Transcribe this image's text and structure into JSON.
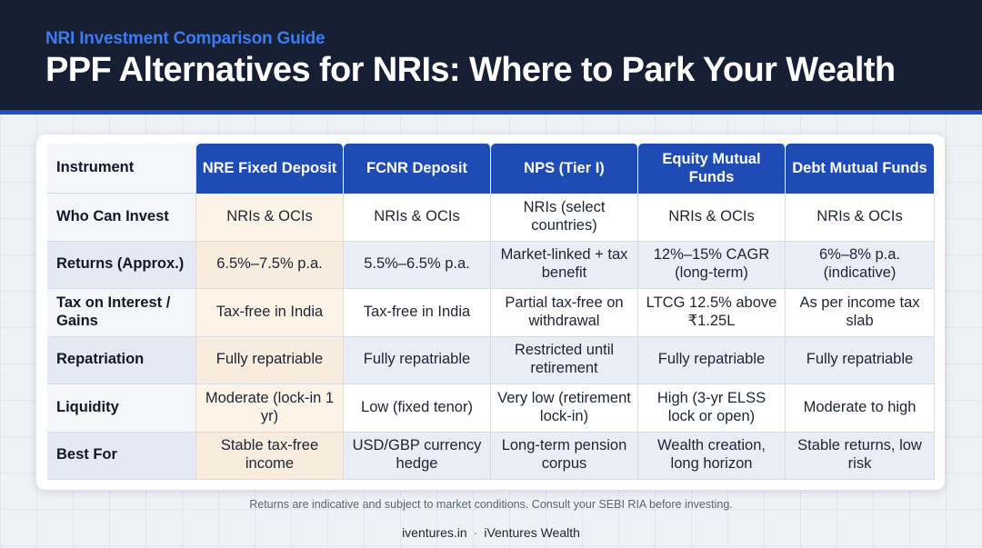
{
  "header": {
    "eyebrow": "NRI Investment Comparison Guide",
    "title": "PPF Alternatives for NRIs: Where to Park Your Wealth"
  },
  "table": {
    "corner": "Instrument",
    "columns": [
      "NRE Fixed Deposit",
      "FCNR Deposit",
      "NPS (Tier I)",
      "Equity Mutual Funds",
      "Debt Mutual Funds"
    ],
    "rows": [
      {
        "label": "Who Can Invest",
        "cells": [
          "NRIs & OCIs",
          "NRIs & OCIs",
          "NRIs (select countries)",
          "NRIs & OCIs",
          "NRIs & OCIs"
        ]
      },
      {
        "label": "Returns (Approx.)",
        "cells": [
          "6.5%–7.5% p.a.",
          "5.5%–6.5% p.a.",
          "Market-linked + tax benefit",
          "12%–15% CAGR (long-term)",
          "6%–8% p.a. (indicative)"
        ]
      },
      {
        "label": "Tax on Interest / Gains",
        "cells": [
          "Tax-free in India",
          "Tax-free in India",
          "Partial tax-free on withdrawal",
          "LTCG 12.5% above ₹1.25L",
          "As per income tax slab"
        ]
      },
      {
        "label": "Repatriation",
        "cells": [
          "Fully repatriable",
          "Fully repatriable",
          "Restricted until retirement",
          "Fully repatriable",
          "Fully repatriable"
        ]
      },
      {
        "label": "Liquidity",
        "cells": [
          "Moderate (lock-in 1 yr)",
          "Low (fixed tenor)",
          "Very low (retirement lock-in)",
          "High (3-yr ELSS lock or open)",
          "Moderate to high"
        ]
      },
      {
        "label": "Best For",
        "cells": [
          "Stable tax-free income",
          "USD/GBP currency hedge",
          "Long-term pension corpus",
          "Wealth creation, long horizon",
          "Stable returns, low risk"
        ]
      }
    ]
  },
  "footer": {
    "note": "Returns are indicative and subject to market conditions. Consult your SEBI RIA before investing.",
    "site": "iventures.in",
    "separator": "·",
    "brand": "iVentures Wealth"
  },
  "colors": {
    "header_bg": "#161f33",
    "accent": "#1f4bb5",
    "eyebrow": "#3d7bf2",
    "highlight_column": "#fdf4e7"
  }
}
